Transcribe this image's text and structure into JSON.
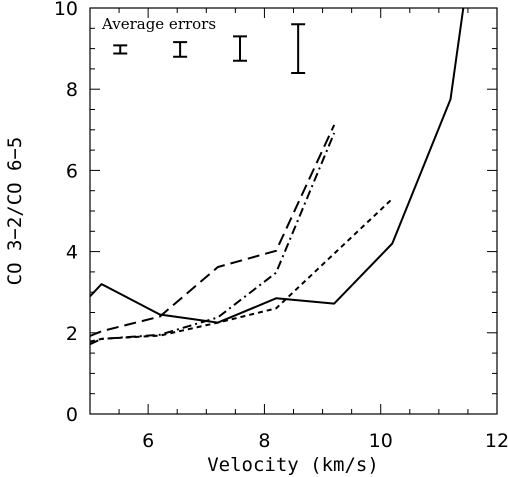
{
  "chart_data": {
    "type": "line",
    "title": "",
    "xlabel": "Velocity (km/s)",
    "ylabel": "CO 3−2/CO 6−5",
    "xlim": [
      5,
      12
    ],
    "ylim": [
      0,
      10
    ],
    "xticks": [
      6,
      8,
      10,
      12
    ],
    "yticks": [
      0,
      2,
      4,
      6,
      8,
      10
    ],
    "grid": false,
    "series": [
      {
        "style": "solid",
        "x": [
          5.0,
          5.2,
          6.2,
          7.2,
          8.2,
          9.2,
          10.2,
          11.2,
          11.42
        ],
        "y": [
          2.9,
          3.2,
          2.45,
          2.25,
          2.85,
          2.72,
          4.2,
          7.75,
          10.0
        ]
      },
      {
        "style": "dashed",
        "x": [
          5.0,
          5.2,
          6.2,
          7.2,
          8.2,
          9.2
        ],
        "y": [
          1.92,
          2.04,
          2.4,
          3.62,
          4.02,
          7.12
        ]
      },
      {
        "style": "dotted",
        "x": [
          5.0,
          5.2,
          6.2,
          7.2,
          8.2,
          10.2
        ],
        "y": [
          1.78,
          1.85,
          1.93,
          2.25,
          2.6,
          5.3
        ]
      },
      {
        "style": "dash-dot",
        "x": [
          5.0,
          5.2,
          6.2,
          7.2,
          8.2,
          9.2
        ],
        "y": [
          1.72,
          1.85,
          1.95,
          2.38,
          3.48,
          6.92
        ]
      }
    ],
    "annotation": {
      "label": "Average errors",
      "error_bars": [
        {
          "x": 5.52,
          "y": 8.98,
          "half": 0.1
        },
        {
          "x": 6.55,
          "y": 8.98,
          "half": 0.18
        },
        {
          "x": 7.58,
          "y": 9.0,
          "half": 0.3
        },
        {
          "x": 8.58,
          "y": 9.0,
          "half": 0.6
        }
      ]
    }
  }
}
